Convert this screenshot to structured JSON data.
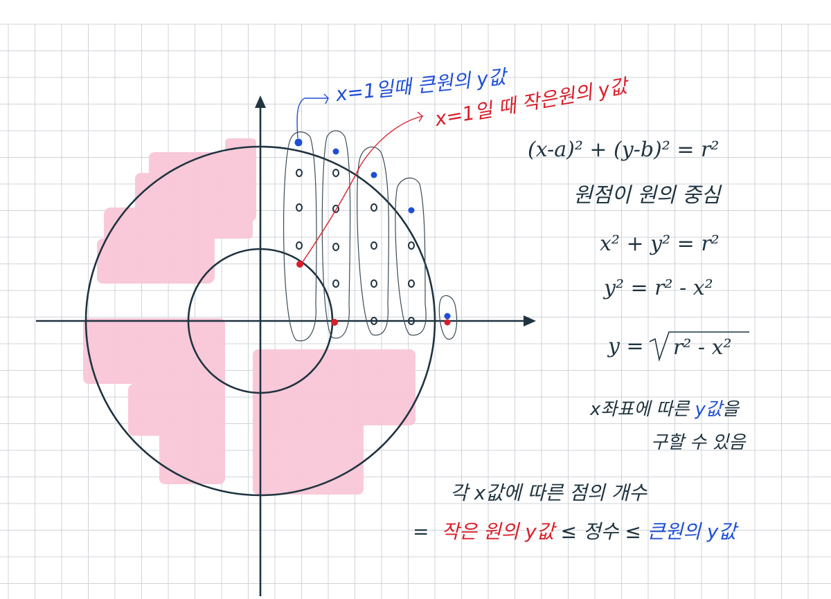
{
  "colors": {
    "ink": "#1f3340",
    "blue": "#1f4fd6",
    "red": "#d91e2a",
    "pink": "#f9c7d8",
    "grid": "#cfd3d8"
  },
  "annotations": {
    "blue_label_prefix": "x=1일때 큰원의 ",
    "blue_label_y": "y값",
    "red_label_prefix": "x=1일 때 작은원의 ",
    "red_label_y": "y값"
  },
  "formulas": {
    "general_circle": "(x-a)² + (y-b)² = r²",
    "origin_center_note": "원점이 원의 중심",
    "eq1": "x² + y² = r²",
    "eq2": "y² = r² - x²",
    "eq3_lhs": "y = ",
    "eq3_rhs": "r² - x²"
  },
  "notes": {
    "line1_part1": "x좌표에 따른 ",
    "line1_y": "y값",
    "line1_part2": "을",
    "line2": "구할 수 있음"
  },
  "conclusion": {
    "line1": "각 x값에 따른 점의 개수",
    "eq_sign": "=",
    "small_y": "작은 원의 y값",
    "le1": " ≤ ",
    "integer": "정수",
    "le2": " ≤ ",
    "big_y": "큰원의 y값"
  }
}
